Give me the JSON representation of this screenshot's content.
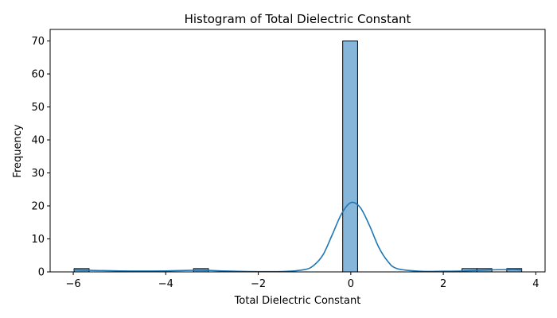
{
  "chart_data": {
    "type": "bar",
    "title": "Histogram of Total Dielectric Constant",
    "xlabel": "Total Dielectric Constant",
    "ylabel": "Frequency",
    "xlim": [
      -6.5,
      4.2
    ],
    "ylim": [
      0,
      73.5
    ],
    "xticks": [
      -6,
      -4,
      -2,
      0,
      2,
      4
    ],
    "xtick_labels": [
      "−6",
      "−4",
      "−2",
      "0",
      "2",
      "4"
    ],
    "yticks": [
      0,
      10,
      20,
      30,
      40,
      50,
      60,
      70
    ],
    "ytick_labels": [
      "0",
      "10",
      "20",
      "30",
      "40",
      "50",
      "60",
      "70"
    ],
    "bin_start": -5.98,
    "bin_width": 0.3225,
    "counts": [
      1,
      0,
      0,
      0,
      0,
      0,
      0,
      0,
      1,
      0,
      0,
      0,
      0,
      0,
      0,
      0,
      0,
      0,
      70,
      0,
      0,
      0,
      0,
      0,
      0,
      0,
      1,
      1,
      0,
      1
    ],
    "kde": {
      "x": [
        -6.0,
        -5.0,
        -4.0,
        -3.3,
        -2.5,
        -1.5,
        -1.0,
        -0.8,
        -0.6,
        -0.4,
        -0.2,
        0.0,
        0.2,
        0.4,
        0.6,
        0.8,
        1.0,
        1.5,
        2.0,
        2.5,
        3.0,
        3.5,
        3.7
      ],
      "y": [
        0.6,
        0.3,
        0.3,
        0.5,
        0.2,
        0.1,
        0.7,
        2.0,
        5.2,
        11.3,
        17.6,
        21.0,
        19.6,
        14.2,
        7.6,
        3.2,
        1.0,
        0.2,
        0.2,
        0.3,
        0.6,
        0.7,
        0.6
      ]
    },
    "grid": false,
    "colors": {
      "bar_fill": "#86b6d9",
      "bar_edge": "#000000",
      "kde_line": "#1f77b4"
    }
  }
}
